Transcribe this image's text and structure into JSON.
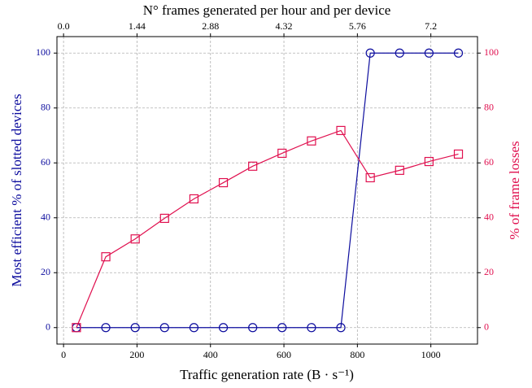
{
  "chart_data": {
    "type": "line",
    "title": "N° frames generated per hour and per device",
    "xlabel": "Traffic generation rate (B · s⁻¹)",
    "ylabel": "Most efficient % of slotted devices",
    "y2label": "% of frame losses",
    "x": [
      35,
      115,
      195,
      275,
      355,
      435,
      515,
      595,
      675,
      755,
      835,
      915,
      995,
      1075
    ],
    "series": [
      {
        "name": "Most efficient % of slotted devices",
        "color": "#0d0d9e",
        "marker": "circle",
        "values": [
          0,
          0,
          0,
          0,
          0,
          0,
          0,
          0,
          0,
          0,
          100,
          100,
          100,
          100
        ]
      },
      {
        "name": "% of frame losses",
        "color": "#e0104f",
        "marker": "square",
        "axis": "y2",
        "values": [
          0,
          25.8,
          32.3,
          39.8,
          46.9,
          52.8,
          58.8,
          63.5,
          68.0,
          71.8,
          54.6,
          57.3,
          60.5,
          63.2
        ]
      }
    ],
    "xlim": [
      -18,
      1127
    ],
    "xticks": [
      0,
      200,
      400,
      600,
      800,
      1000
    ],
    "x2lim": [
      -0.1296,
      8.1144
    ],
    "x2ticks": [
      {
        "value": 0,
        "label": "0.0"
      },
      1.44,
      2.88,
      4.32,
      5.76,
      {
        "value": 7.2,
        "label": "7.2"
      }
    ],
    "ylim": [
      -6,
      106
    ],
    "yticks": [
      0,
      20,
      40,
      60,
      80,
      100
    ],
    "y2lim": [
      -6,
      106
    ],
    "y2ticks": [
      0,
      20,
      40,
      60,
      80,
      100
    ],
    "grid": true
  }
}
